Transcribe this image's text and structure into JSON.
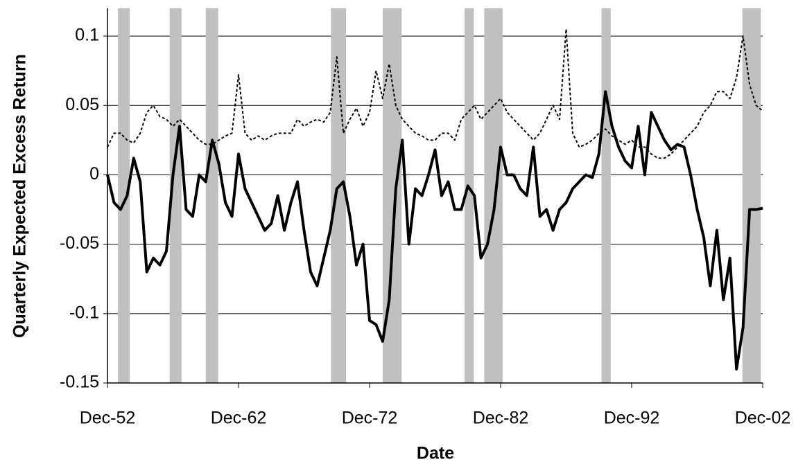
{
  "chart_data": {
    "type": "line",
    "x_label": "Date",
    "y_label": "Quarterly Expected Excess Return",
    "categories": [
      "Dec-52",
      null,
      null,
      null,
      null,
      null,
      null,
      null,
      null,
      null,
      null,
      null,
      null,
      null,
      null,
      null,
      null,
      null,
      null,
      null,
      "Dec-62",
      null,
      null,
      null,
      null,
      null,
      null,
      null,
      null,
      null,
      null,
      null,
      null,
      null,
      null,
      null,
      null,
      null,
      null,
      null,
      "Dec-72",
      null,
      null,
      null,
      null,
      null,
      null,
      null,
      null,
      null,
      null,
      null,
      null,
      null,
      null,
      null,
      null,
      null,
      null,
      null,
      "Dec-82",
      null,
      null,
      null,
      null,
      null,
      null,
      null,
      null,
      null,
      null,
      null,
      null,
      null,
      null,
      null,
      null,
      null,
      null,
      null,
      "Dec-92",
      null,
      null,
      null,
      null,
      null,
      null,
      null,
      null,
      null,
      null,
      null,
      null,
      null,
      null,
      null,
      null,
      null,
      null,
      null,
      "Dec-02"
    ],
    "series": [
      {
        "color": "#000000",
        "style": "solid",
        "values": [
          0,
          -0.02,
          -0.025,
          -0.015,
          0.012,
          -0.005,
          -0.07,
          -0.06,
          -0.065,
          -0.055,
          0.0,
          0.035,
          -0.025,
          -0.03,
          0.0,
          -0.005,
          0.025,
          0.008,
          -0.02,
          -0.03,
          0.015,
          -0.01,
          -0.02,
          -0.03,
          -0.04,
          -0.035,
          -0.015,
          -0.04,
          -0.02,
          -0.005,
          -0.04,
          -0.07,
          -0.08,
          -0.06,
          -0.04,
          -0.01,
          -0.005,
          -0.03,
          -0.065,
          -0.05,
          -0.105,
          -0.108,
          -0.12,
          -0.09,
          -0.01,
          0.025,
          -0.05,
          -0.01,
          -0.015,
          0.0,
          0.018,
          -0.015,
          -0.005,
          -0.025,
          -0.025,
          -0.008,
          -0.015,
          -0.06,
          -0.05,
          -0.025,
          0.02,
          0.0,
          0.0,
          -0.01,
          -0.015,
          0.02,
          -0.03,
          -0.025,
          -0.04,
          -0.025,
          -0.02,
          -0.01,
          -0.005,
          0.0,
          -0.002,
          0.015,
          0.06,
          0.035,
          0.02,
          0.01,
          0.005,
          0.035,
          0.0,
          0.045,
          0.035,
          0.025,
          0.018,
          0.022,
          0.02,
          0.0,
          -0.025,
          -0.045,
          -0.08,
          -0.04,
          -0.09,
          -0.06,
          -0.14,
          -0.11,
          -0.025,
          -0.025,
          -0.024
        ]
      },
      {
        "color": "#000000",
        "style": "dotted",
        "values": [
          0.02,
          0.03,
          0.03,
          0.025,
          0.023,
          0.03,
          0.045,
          0.05,
          0.042,
          0.04,
          0.035,
          0.04,
          0.035,
          0.03,
          0.025,
          0.022,
          0.022,
          0.025,
          0.028,
          0.03,
          0.072,
          0.03,
          0.025,
          0.028,
          0.025,
          0.028,
          0.03,
          0.03,
          0.03,
          0.04,
          0.035,
          0.038,
          0.04,
          0.038,
          0.045,
          0.085,
          0.03,
          0.04,
          0.048,
          0.035,
          0.045,
          0.075,
          0.055,
          0.08,
          0.05,
          0.04,
          0.035,
          0.03,
          0.028,
          0.025,
          0.025,
          0.03,
          0.03,
          0.025,
          0.04,
          0.045,
          0.05,
          0.04,
          0.045,
          0.05,
          0.055,
          0.045,
          0.04,
          0.035,
          0.03,
          0.025,
          0.03,
          0.04,
          0.05,
          0.04,
          0.105,
          0.03,
          0.02,
          0.022,
          0.025,
          0.03,
          0.033,
          0.028,
          0.025,
          0.022,
          0.025,
          0.02,
          0.02,
          0.015,
          0.012,
          0.012,
          0.015,
          0.02,
          0.025,
          0.03,
          0.035,
          0.045,
          0.05,
          0.06,
          0.06,
          0.055,
          0.07,
          0.1,
          0.065,
          0.05,
          0.046
        ]
      }
    ],
    "shaded_periods": [
      [
        1.6,
        3.4
      ],
      [
        9.5,
        11.3
      ],
      [
        15.0,
        16.9
      ],
      [
        34.1,
        36.4
      ],
      [
        42.0,
        44.9
      ],
      [
        54.5,
        55.9
      ],
      [
        57.5,
        60.3
      ],
      [
        75.4,
        76.8
      ],
      [
        96.9,
        99.7
      ]
    ],
    "shade_color": "#c0c0c0",
    "ylim": [
      -0.15,
      0.12
    ],
    "yticks": [
      0.1,
      0.05,
      0,
      -0.05,
      -0.1,
      -0.15
    ],
    "grid": true
  }
}
